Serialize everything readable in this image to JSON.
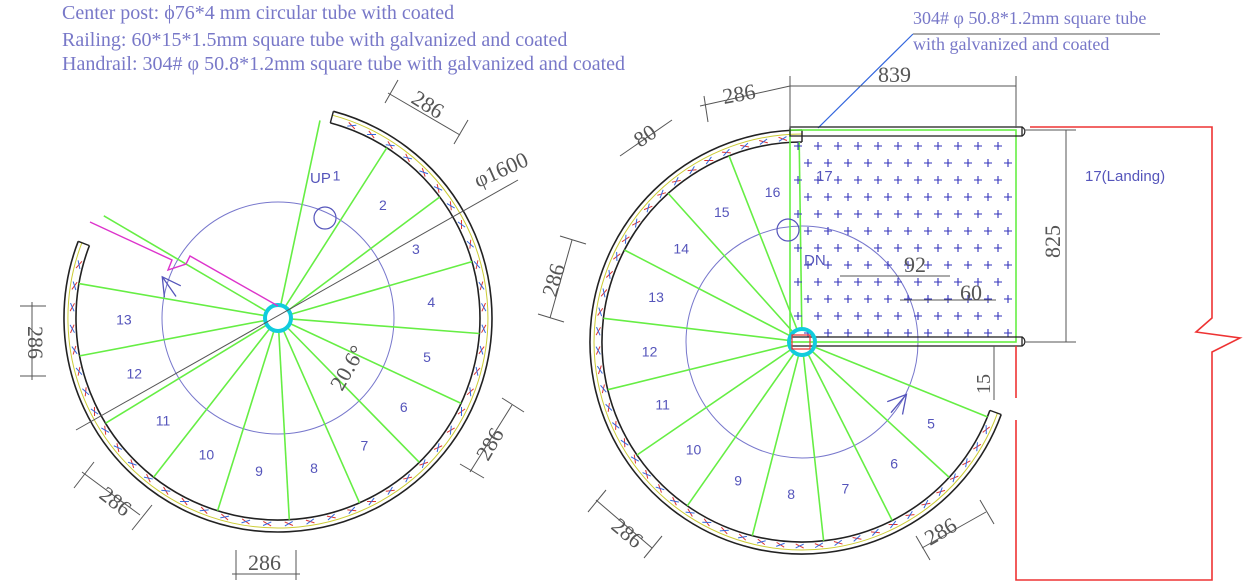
{
  "notes": {
    "center_post": "Center post: ϕ76*4 mm circular tube with coated",
    "railing": "Railing: 60*15*1.5mm square tube with galvanized and coated",
    "handrail": "Handrail: 304# φ 50.8*1.2mm square tube with galvanized and coated"
  },
  "callout": {
    "line1": "304# φ 50.8*1.2mm square tube",
    "line2": "with galvanized and coated"
  },
  "left_plan": {
    "up_label": "UP",
    "diameter": "φ1600",
    "angle": "20.6°",
    "steps": [
      "1",
      "2",
      "3",
      "4",
      "5",
      "6",
      "7",
      "8",
      "9",
      "10",
      "11",
      "12",
      "13"
    ],
    "dim_tread": "286"
  },
  "right_plan": {
    "dn_label": "DN",
    "landing_label": "17(Landing)",
    "landing_step": "17",
    "steps": [
      "5",
      "6",
      "7",
      "8",
      "9",
      "10",
      "11",
      "12",
      "13",
      "14",
      "15",
      "16"
    ],
    "dim_839": "839",
    "dim_825": "825",
    "dim_80": "80",
    "dim_92": "92",
    "dim_60": "60",
    "dim_15": "15",
    "dim_tread": "286"
  },
  "colors": {
    "ink": "#7878c8",
    "dim": "#555555",
    "green": "#66ee44",
    "cyan": "#11ccdd",
    "red": "#ee3333",
    "magenta": "#dd33cc",
    "blue": "#3333bb"
  }
}
